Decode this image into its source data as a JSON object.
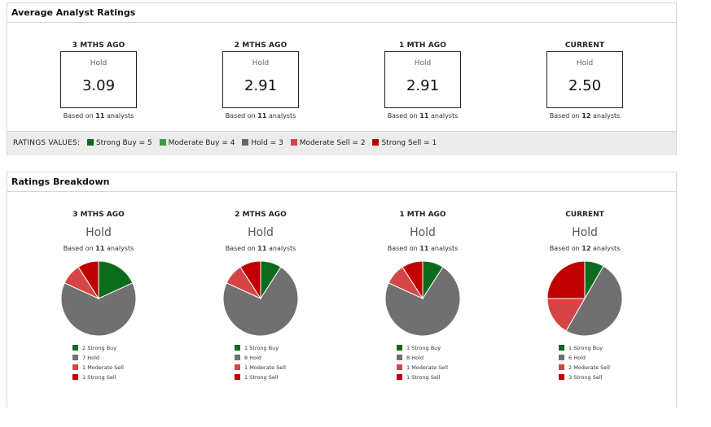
{
  "avg_panel": {
    "title": "Average Analyst Ratings",
    "periods": [
      {
        "title": "3 MTHS AGO",
        "label": "Hold",
        "value": "3.09",
        "based_prefix": "Based on ",
        "count": "11",
        "based_suffix": " analysts"
      },
      {
        "title": "2 MTHS AGO",
        "label": "Hold",
        "value": "2.91",
        "based_prefix": "Based on ",
        "count": "11",
        "based_suffix": " analysts"
      },
      {
        "title": "1 MTH AGO",
        "label": "Hold",
        "value": "2.91",
        "based_prefix": "Based on ",
        "count": "11",
        "based_suffix": " analysts"
      },
      {
        "title": "CURRENT",
        "label": "Hold",
        "value": "2.50",
        "based_prefix": "Based on ",
        "count": "12",
        "based_suffix": " analysts"
      }
    ],
    "ratings_values": {
      "label": "RATINGS VALUES:",
      "items": [
        {
          "text": "Strong Buy = 5",
          "color": "#0b6b1c"
        },
        {
          "text": "Moderate Buy = 4",
          "color": "#3a9a45"
        },
        {
          "text": "Hold = 3",
          "color": "#666666"
        },
        {
          "text": "Moderate Sell = 2",
          "color": "#d64545"
        },
        {
          "text": "Strong Sell = 1",
          "color": "#c00000"
        }
      ]
    }
  },
  "breakdown_panel": {
    "title": "Ratings Breakdown",
    "periods": [
      {
        "title": "3 MTHS AGO",
        "rating": "Hold",
        "based_prefix": "Based on ",
        "count": "11",
        "based_suffix": " analysts",
        "legend": [
          "2 Strong Buy",
          "7 Hold",
          "1 Moderate Sell",
          "1 Strong Sell"
        ],
        "slices": [
          {
            "name": "Strong Buy",
            "value": 2,
            "color": "#0b6b1c"
          },
          {
            "name": "Hold",
            "value": 7,
            "color": "#707070"
          },
          {
            "name": "Moderate Sell",
            "value": 1,
            "color": "#d64545"
          },
          {
            "name": "Strong Sell",
            "value": 1,
            "color": "#c00000"
          }
        ]
      },
      {
        "title": "2 MTHS AGO",
        "rating": "Hold",
        "based_prefix": "Based on ",
        "count": "11",
        "based_suffix": " analysts",
        "legend": [
          "1 Strong Buy",
          "8 Hold",
          "1 Moderate Sell",
          "1 Strong Sell"
        ],
        "slices": [
          {
            "name": "Strong Buy",
            "value": 1,
            "color": "#0b6b1c"
          },
          {
            "name": "Hold",
            "value": 8,
            "color": "#707070"
          },
          {
            "name": "Moderate Sell",
            "value": 1,
            "color": "#d64545"
          },
          {
            "name": "Strong Sell",
            "value": 1,
            "color": "#c00000"
          }
        ]
      },
      {
        "title": "1 MTH AGO",
        "rating": "Hold",
        "based_prefix": "Based on ",
        "count": "11",
        "based_suffix": " analysts",
        "legend": [
          "1 Strong Buy",
          "8 Hold",
          "1 Moderate Sell",
          "1 Strong Sell"
        ],
        "slices": [
          {
            "name": "Strong Buy",
            "value": 1,
            "color": "#0b6b1c"
          },
          {
            "name": "Hold",
            "value": 8,
            "color": "#707070"
          },
          {
            "name": "Moderate Sell",
            "value": 1,
            "color": "#d64545"
          },
          {
            "name": "Strong Sell",
            "value": 1,
            "color": "#c00000"
          }
        ]
      },
      {
        "title": "CURRENT",
        "rating": "Hold",
        "based_prefix": "Based on ",
        "count": "12",
        "based_suffix": " analysts",
        "legend": [
          "1 Strong Buy",
          "6 Hold",
          "2 Moderate Sell",
          "3 Strong Sell"
        ],
        "slices": [
          {
            "name": "Strong Buy",
            "value": 1,
            "color": "#0b6b1c"
          },
          {
            "name": "Hold",
            "value": 6,
            "color": "#707070"
          },
          {
            "name": "Moderate Sell",
            "value": 2,
            "color": "#d64545"
          },
          {
            "name": "Strong Sell",
            "value": 3,
            "color": "#c00000"
          }
        ]
      }
    ]
  }
}
